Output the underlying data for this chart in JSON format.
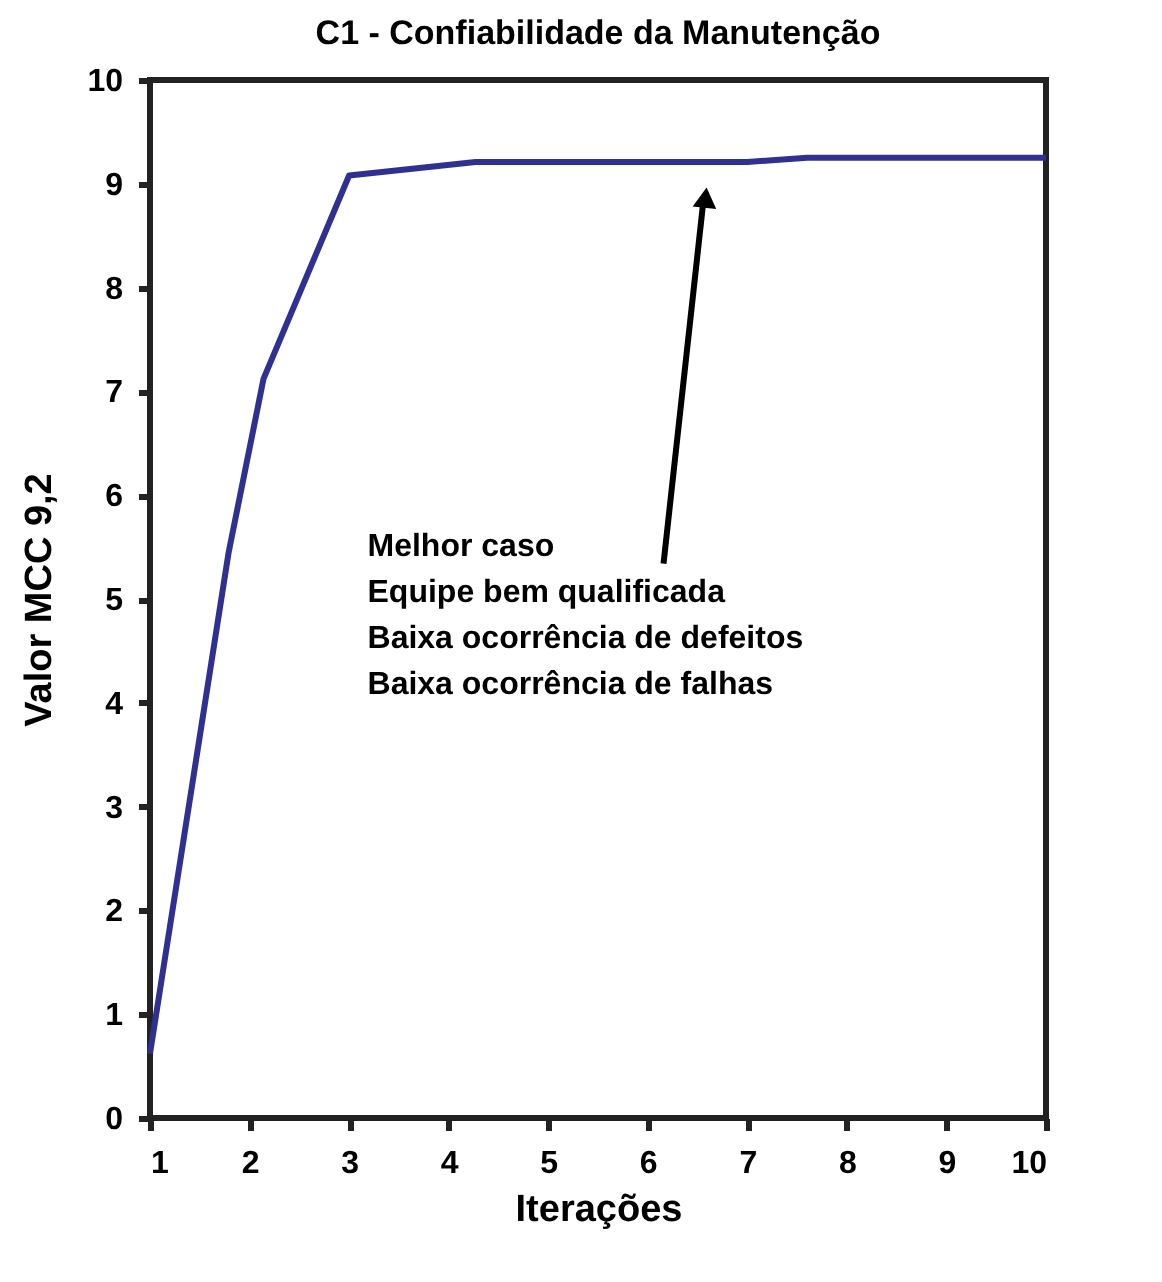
{
  "chart_data": {
    "type": "line",
    "title": "C1 - Confiabilidade da Manutenção",
    "xlabel": "Iterações",
    "ylabel": "Valor MCC 9,2",
    "x": [
      1,
      1.79,
      2.14,
      3.0,
      4.27,
      7.0,
      7.6,
      10
    ],
    "series": [
      {
        "color": "#2e3192",
        "values": [
          0.62,
          5.45,
          7.12,
          9.08,
          9.21,
          9.21,
          9.25,
          9.25
        ]
      }
    ],
    "xlim": [
      1,
      10
    ],
    "ylim": [
      0,
      10
    ],
    "xticks": [
      1,
      2,
      3,
      4,
      5,
      6,
      7,
      8,
      9,
      10
    ],
    "yticks": [
      0,
      1,
      2,
      3,
      4,
      5,
      6,
      7,
      8,
      9,
      10
    ],
    "annotations": [
      "Melhor caso\nEquipe bem qualificada\nBaixa ocorrência de defeitos\nBaixa ocorrência de falhas"
    ],
    "grid": false,
    "marker": "none",
    "line_style": "solid"
  }
}
